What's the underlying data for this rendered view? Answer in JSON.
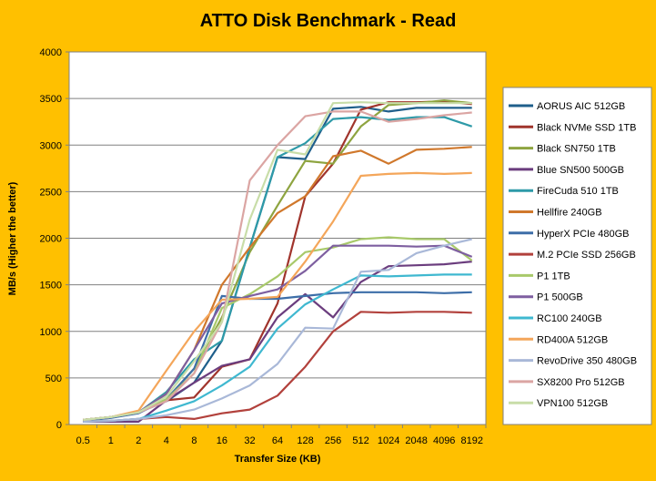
{
  "chart_data": {
    "type": "line",
    "title": "ATTO Disk Benchmark - Read",
    "xlabel": "Transfer Size (KB)",
    "ylabel": "MB/s (Higher the better)",
    "ylim": [
      0,
      4000
    ],
    "yticks": [
      0,
      500,
      1000,
      1500,
      2000,
      2500,
      3000,
      3500,
      4000
    ],
    "categories": [
      "0.5",
      "1",
      "2",
      "4",
      "8",
      "16",
      "32",
      "64",
      "128",
      "256",
      "512",
      "1024",
      "2048",
      "4096",
      "8192"
    ],
    "grid": true,
    "legend_position": "right",
    "series": [
      {
        "name": "AORUS AIC 512GB",
        "color": "#1F5F8B",
        "values": [
          50,
          80,
          130,
          250,
          450,
          900,
          1900,
          2870,
          2850,
          3390,
          3410,
          3360,
          3400,
          3400,
          3400
        ]
      },
      {
        "name": "Black NVMe SSD 1TB",
        "color": "#A0342C",
        "values": [
          50,
          80,
          130,
          260,
          290,
          620,
          700,
          1300,
          2450,
          2800,
          3380,
          3460,
          3460,
          3470,
          3440
        ]
      },
      {
        "name": "Black SN750 1TB",
        "color": "#8EA440",
        "values": [
          50,
          80,
          130,
          270,
          600,
          1150,
          1850,
          2350,
          2830,
          2800,
          3200,
          3430,
          3450,
          3480,
          3450
        ]
      },
      {
        "name": "Blue SN500 500GB",
        "color": "#6B3D7E",
        "values": [
          30,
          30,
          30,
          260,
          450,
          630,
          700,
          1150,
          1400,
          1150,
          1530,
          1700,
          1710,
          1720,
          1750
        ]
      },
      {
        "name": "FireCuda 510 1TB",
        "color": "#2E9AA8",
        "values": [
          50,
          80,
          130,
          350,
          700,
          900,
          1900,
          2870,
          3020,
          3280,
          3300,
          3270,
          3300,
          3300,
          3200
        ]
      },
      {
        "name": "Hellfire 240GB",
        "color": "#D0782C",
        "values": [
          50,
          80,
          130,
          330,
          800,
          1500,
          1900,
          2270,
          2450,
          2880,
          2940,
          2800,
          2950,
          2960,
          2980
        ]
      },
      {
        "name": "HyperX PCIe 480GB",
        "color": "#3D6EA8",
        "values": [
          40,
          70,
          120,
          270,
          600,
          1380,
          1350,
          1350,
          1380,
          1410,
          1420,
          1420,
          1420,
          1410,
          1420
        ]
      },
      {
        "name": "M.2 PCIe SSD 256GB",
        "color": "#B2413C",
        "values": [
          30,
          40,
          60,
          80,
          60,
          120,
          160,
          310,
          620,
          1000,
          1210,
          1200,
          1210,
          1210,
          1200
        ]
      },
      {
        "name": "P1 1TB",
        "color": "#A8C96A",
        "values": [
          50,
          80,
          130,
          270,
          550,
          1250,
          1400,
          1590,
          1850,
          1900,
          1990,
          2010,
          1990,
          1990,
          1760
        ]
      },
      {
        "name": "P1 500GB",
        "color": "#7E5FA0",
        "values": [
          50,
          80,
          130,
          330,
          800,
          1300,
          1380,
          1450,
          1650,
          1920,
          1920,
          1920,
          1910,
          1920,
          1800
        ]
      },
      {
        "name": "RC100 240GB",
        "color": "#3FB8D0",
        "values": [
          30,
          40,
          60,
          150,
          250,
          420,
          620,
          1030,
          1290,
          1450,
          1600,
          1590,
          1600,
          1610,
          1610
        ]
      },
      {
        "name": "RD400A 512GB",
        "color": "#F4A65A",
        "values": [
          50,
          80,
          150,
          580,
          1000,
          1340,
          1350,
          1370,
          1750,
          2180,
          2670,
          2690,
          2700,
          2690,
          2700
        ]
      },
      {
        "name": "RevoDrive 350 480GB",
        "color": "#A9B8D8",
        "values": [
          30,
          40,
          60,
          100,
          160,
          280,
          420,
          650,
          1040,
          1030,
          1640,
          1660,
          1840,
          1920,
          1990
        ]
      },
      {
        "name": "SX8200 Pro 512GB",
        "color": "#DBA5A3",
        "values": [
          50,
          80,
          130,
          250,
          550,
          1100,
          2620,
          3000,
          3310,
          3360,
          3360,
          3250,
          3280,
          3320,
          3350
        ]
      },
      {
        "name": "VPN100 512GB",
        "color": "#C8DDA8",
        "values": [
          50,
          80,
          130,
          300,
          680,
          1100,
          2200,
          2950,
          2900,
          3450,
          3460,
          3450,
          3450,
          3450,
          3450
        ]
      }
    ]
  }
}
